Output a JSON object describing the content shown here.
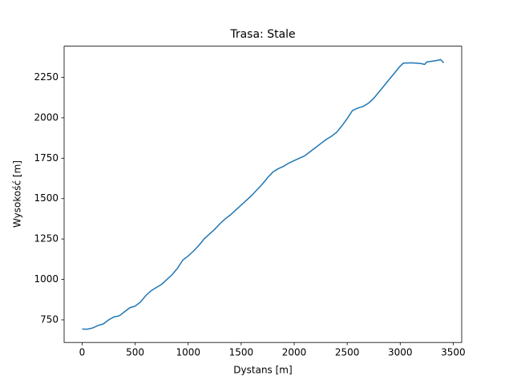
{
  "chart_data": {
    "type": "line",
    "title": "Trasa: Stale",
    "x_label": "Dystans [m]",
    "y_label": "Wysokość [m]",
    "x": [
      0,
      50,
      100,
      150,
      200,
      250,
      300,
      350,
      400,
      450,
      500,
      550,
      600,
      650,
      700,
      750,
      800,
      850,
      900,
      950,
      1000,
      1050,
      1100,
      1150,
      1200,
      1250,
      1300,
      1350,
      1400,
      1450,
      1500,
      1550,
      1600,
      1650,
      1700,
      1750,
      1800,
      1850,
      1900,
      1950,
      2000,
      2050,
      2100,
      2150,
      2200,
      2250,
      2300,
      2350,
      2400,
      2450,
      2500,
      2550,
      2600,
      2650,
      2700,
      2750,
      2800,
      2850,
      2900,
      2950,
      3000,
      3030,
      3100,
      3150,
      3200,
      3230,
      3250,
      3300,
      3350,
      3380,
      3410
    ],
    "series": [
      {
        "name": "Wysokość",
        "color": "#1f77b4",
        "values": [
          693,
          692,
          700,
          715,
          725,
          750,
          768,
          775,
          800,
          825,
          835,
          860,
          900,
          930,
          950,
          970,
          1000,
          1030,
          1070,
          1120,
          1145,
          1175,
          1210,
          1250,
          1280,
          1310,
          1345,
          1375,
          1400,
          1430,
          1460,
          1490,
          1520,
          1555,
          1590,
          1630,
          1665,
          1685,
          1700,
          1720,
          1735,
          1750,
          1765,
          1790,
          1815,
          1840,
          1865,
          1885,
          1910,
          1950,
          1995,
          2045,
          2060,
          2070,
          2090,
          2120,
          2160,
          2200,
          2240,
          2280,
          2320,
          2338,
          2340,
          2338,
          2335,
          2330,
          2345,
          2350,
          2355,
          2360,
          2340
        ]
      }
    ],
    "xlim": [
      -170,
      3580
    ],
    "xticks": [
      0,
      500,
      1000,
      1500,
      2000,
      2500,
      3000,
      3500
    ],
    "ylim": [
      610,
      2443
    ],
    "yticks": [
      750,
      1000,
      1250,
      1500,
      1750,
      2000,
      2250
    ]
  }
}
